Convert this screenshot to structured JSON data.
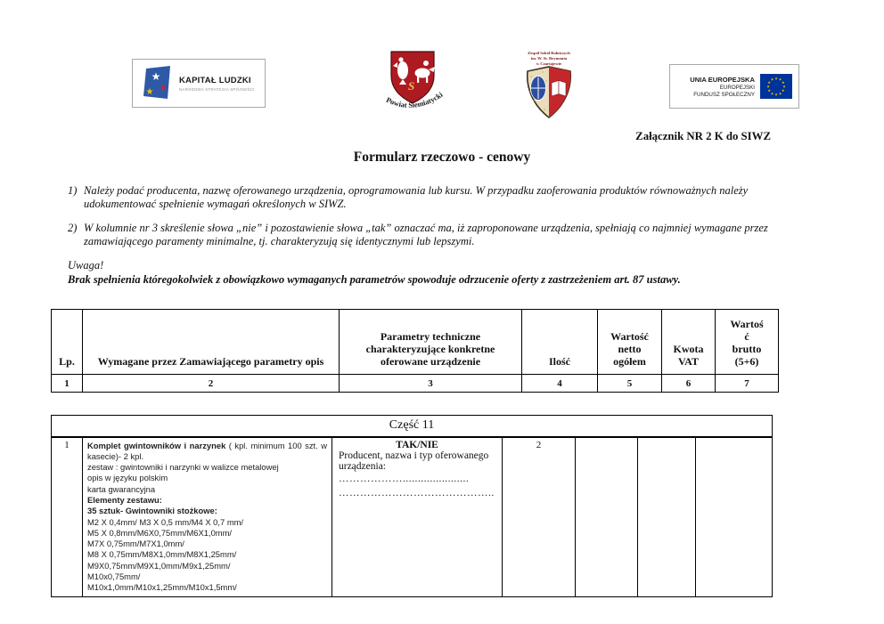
{
  "attachment": "Załącznik NR 2 K do SIWZ",
  "title": "Formularz rzeczowo - cenowy",
  "icons": {
    "star": "★"
  },
  "colors": {
    "eu_flag_blue": "#003399",
    "eu_star_yellow": "#FFCC00",
    "kl_flag_blue": "#2E59A6",
    "kl_star_red": "#D22328",
    "kl_star_yellow": "#F2C500",
    "powiat_shield_red": "#AD1B21",
    "school_shield_red": "#C3272B",
    "school_shield_tan": "#E9DDBE",
    "school_oval_blue": "#2C4E9E"
  },
  "logos": {
    "kapital_ludzki": {
      "name": "KAPITAŁ LUDZKI",
      "subtitle": "NARODOWA STRATEGIA SPÓJNOŚCI"
    },
    "powiat": {
      "caption": "Powiat Siemiatycki",
      "monogram": "S"
    },
    "school": {
      "line1": "Zespół Szkół Rolniczych",
      "line2": "im. W. St. Reymonta",
      "line3": "w Czartajewie"
    },
    "eu": {
      "line1": "UNIA EUROPEJSKA",
      "line2": "EUROPEJSKI",
      "line3": "FUNDUSZ SPOŁECZNY"
    }
  },
  "notes": [
    {
      "num": "1)",
      "text": "Należy podać producenta, nazwę oferowanego urządzenia, oprogramowania lub kursu. W przypadku zaoferowania produktów równoważnych należy udokumentować spełnienie wymagań określonych w SIWZ."
    },
    {
      "num": "2)",
      "text": "W kolumnie nr 3 skreślenie słowa „nie” i pozostawienie słowa „tak” oznaczać ma, iż zaproponowane urządzenia, spełniają co najmniej wymagane przez zamawiającego paramenty minimalne, tj. charakteryzują się identycznymi  lub lepszymi."
    }
  ],
  "warning": {
    "label": "Uwaga!",
    "text": "Brak spełnienia któregokolwiek z obowiązkowo wymaganych parametrów spowoduje odrzucenie oferty z zastrzeżeniem art. 87 ustawy."
  },
  "header_table": {
    "col1": "Lp.",
    "col2": "Wymagane przez Zamawiającego parametry opis",
    "col3": "Parametry techniczne charakteryzujące konkretne oferowane urządzenie",
    "col4": "Ilość",
    "col5": "Wartość netto ogółem",
    "col6": "Kwota VAT",
    "col7_lines": [
      "Wartoś",
      "ć",
      "brutto",
      "(5+6)"
    ],
    "numbers": [
      "1",
      "2",
      "3",
      "4",
      "5",
      "6",
      "7"
    ]
  },
  "section": {
    "title": "Część 11",
    "item": {
      "lp": "1",
      "desc_lines": [
        [
          {
            "b": true,
            "t": "Komplet gwintowników i narzynek"
          },
          {
            "b": false,
            "t": " ( kpl. minimum 100 szt. w kasecie)- 2 kpl."
          }
        ],
        [
          {
            "b": false,
            "t": "zestaw : gwintowniki i narzynki w walizce metalowej"
          }
        ],
        [
          {
            "b": false,
            "t": "opis w języku polskim"
          }
        ],
        [
          {
            "b": false,
            "t": "karta gwarancyjna"
          }
        ],
        [
          {
            "b": true,
            "t": "Elementy zestawu:"
          }
        ],
        [
          {
            "b": true,
            "t": "35 sztuk- Gwintowniki stożkowe:"
          }
        ],
        [
          {
            "b": false,
            "t": "M2 X 0,4mm/ M3 X 0,5 mm/M4 X 0,7 mm/"
          }
        ],
        [
          {
            "b": false,
            "t": "M5 X 0,8mm/M6X0,75mm/M6X1,0mm/"
          }
        ],
        [
          {
            "b": false,
            "t": "M7X 0,75mm/M7X1,0mm/"
          }
        ],
        [
          {
            "b": false,
            "t": "M8 X 0,75mm/M8X1,0mm/M8X1,25mm/"
          }
        ],
        [
          {
            "b": false,
            "t": "M9X0,75mm/M9X1,0mm/M9x1,25mm/"
          }
        ],
        [
          {
            "b": false,
            "t": "M10x0,75mm/"
          }
        ],
        [
          {
            "b": false,
            "t": "M10x1,0mm/M10x1,25mm/M10x1,5mm/"
          }
        ]
      ],
      "offer_header": "TAK/NIE",
      "offer_label": "Producent, nazwa i typ oferowanego urządzenia:",
      "offer_dots1": "………………......................",
      "offer_dots2": "……………………………………..",
      "qty": "2"
    }
  }
}
